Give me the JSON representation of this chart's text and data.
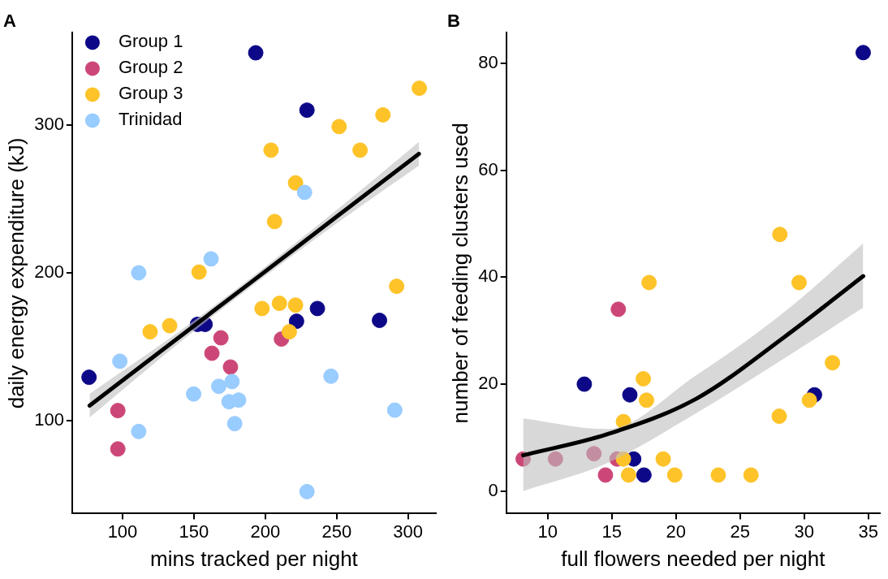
{
  "chart_data": [
    {
      "type": "scatter",
      "title": "A",
      "xlabel": "mins tracked per night",
      "ylabel": "daily energy expenditure (kJ)",
      "xlim": [
        64.7,
        319.5
      ],
      "ylim": [
        37.5,
        362
      ],
      "xticks": [
        100,
        150,
        200,
        250,
        300
      ],
      "yticks": [
        100,
        200,
        300
      ],
      "grid": false,
      "legend": "top left",
      "marker": "circle",
      "series": [
        {
          "name": "Group 1",
          "color": "#0d0887",
          "x": [
            76.5,
            193.3,
            229.2,
            152.5,
            157.8,
            221.9,
            236.5,
            280.0
          ],
          "values": [
            129.5,
            348.5,
            309.8,
            165.2,
            165.2,
            167.3,
            175.9,
            167.9
          ]
        },
        {
          "name": "Group 2",
          "color": "#cc4778",
          "x": [
            168.9,
            162.6,
            175.6,
            211.3,
            96.7,
            96.7
          ],
          "values": [
            156.1,
            145.7,
            136.4,
            155.3,
            107,
            81.1
          ]
        },
        {
          "name": "Group 3",
          "color": "#fdc328",
          "x": [
            307.9,
            282.4,
            251.7,
            204,
            266.4,
            221.2,
            206.5,
            153.6,
            292,
            119.3,
            133,
            197.7,
            209.9,
            221.2,
            216.8
          ],
          "values": [
            324.6,
            306.6,
            298.7,
            282.8,
            282.8,
            260.7,
            234.6,
            200.5,
            190.9,
            160.2,
            164.3,
            175.9,
            179.4,
            178.2,
            160.2
          ]
        },
        {
          "name": "Trinidad",
          "color": "#99ccff",
          "x": [
            227.5,
            162,
            111.3,
            98.1,
            111.3,
            149.8,
            167.4,
            176.7,
            174.6,
            181.3,
            178.6,
            246,
            290.7,
            229.2
          ],
          "values": [
            254.3,
            209.4,
            200,
            140.3,
            92.9,
            118.2,
            123.4,
            126.6,
            113,
            114.1,
            98.2,
            130.2,
            107.3,
            52.3
          ]
        },
        {
          "type": "line",
          "marker": "none",
          "color": "#000000",
          "x": [
            76.9,
            140,
            190,
            250,
            307.6
          ],
          "values": [
            110.3,
            156.8,
            193.6,
            237.9,
            280.3
          ],
          "lower": [
            102.3,
            153,
            190.6,
            233.4,
            272.3
          ],
          "upper": [
            118.3,
            160.6,
            196.6,
            242.4,
            288.3
          ]
        }
      ]
    },
    {
      "type": "scatter",
      "title": "B",
      "xlabel": "full flowers needed per night",
      "ylabel": "number of feeding clusters used",
      "xlim": [
        6.76,
        35.9
      ],
      "ylim": [
        -4.2,
        85.7
      ],
      "xticks": [
        10,
        15,
        20,
        25,
        30,
        35
      ],
      "yticks": [
        0,
        20,
        40,
        60,
        80
      ],
      "grid": false,
      "marker": "circle",
      "series": [
        {
          "color": "#0d0887",
          "x": [
            34.6,
            12.85,
            16.4,
            30.8,
            16.7,
            17.5
          ],
          "values": [
            82,
            20,
            18,
            18,
            6,
            3
          ]
        },
        {
          "color": "#cc4778",
          "x": [
            8.08,
            10.6,
            13.6,
            15.5,
            14.5,
            15.4
          ],
          "values": [
            6,
            6,
            7,
            34,
            3,
            6
          ]
        },
        {
          "color": "#fdc328",
          "x": [
            28.1,
            17.9,
            29.6,
            32.2,
            17.45,
            17.7,
            30.4,
            28.05,
            15.9,
            15.9,
            19.0,
            16.3,
            19.9,
            23.3,
            25.85
          ],
          "values": [
            48,
            39,
            39,
            24,
            21,
            17,
            17,
            14,
            13,
            6,
            6,
            3,
            3,
            3,
            3
          ]
        },
        {
          "type": "line",
          "marker": "none",
          "color": "#000000",
          "x": [
            8.08,
            14.6,
            21.6,
            28.5,
            34.6
          ],
          "values": [
            6.7,
            10.6,
            17.3,
            28.9,
            40.2
          ],
          "lower": [
            0,
            5.2,
            14.6,
            24.9,
            34.3
          ],
          "upper": [
            13.6,
            11.6,
            21.7,
            33.6,
            46.3
          ]
        }
      ]
    }
  ]
}
